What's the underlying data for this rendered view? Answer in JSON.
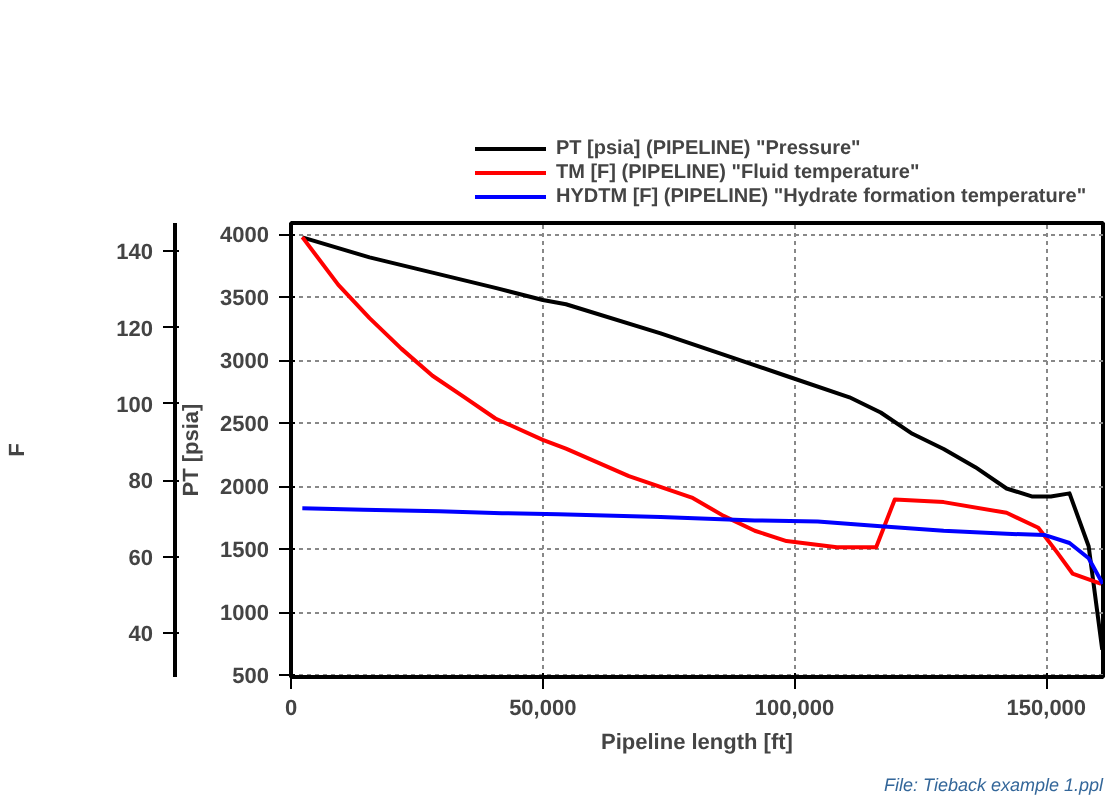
{
  "chart_data": {
    "type": "line",
    "xlabel": "Pipeline length [ft]",
    "ylabel": "PT [psia]",
    "y2label": "F",
    "xlim": [
      0,
      161250
    ],
    "xticks": [
      0,
      {
        "value": 50000,
        "label": "50,000"
      },
      {
        "value": 100000,
        "label": "100,000"
      },
      {
        "value": 150000,
        "label": "150,000"
      }
    ],
    "ylim": [
      485,
      4090
    ],
    "yticks": [
      500,
      1000,
      1500,
      2000,
      2500,
      3000,
      3500,
      4000
    ],
    "y2lim": [
      28.5,
      147.4
    ],
    "y2ticks": [
      40,
      60,
      80,
      100,
      120,
      140
    ],
    "grid": true,
    "legend": "top",
    "line_style": "solid",
    "annotations": [
      "File: Tieback example 1.ppl"
    ],
    "series": [
      {
        "name": "PT [psia] (PIPELINE) \"Pressure\"",
        "color": "#000000",
        "x": [
          2250,
          15600,
          28100,
          40600,
          50000,
          54600,
          73400,
          85900,
          98400,
          110900,
          117100,
          123400,
          129600,
          135900,
          142100,
          147100,
          150900,
          154600,
          158400,
          161100
        ],
        "values": [
          3976,
          3817,
          3696,
          3575,
          3479,
          3445,
          3213,
          3044,
          2875,
          2706,
          2585,
          2416,
          2296,
          2151,
          1982,
          1919,
          1919,
          1943,
          1523,
          702
        ]
      },
      {
        "name": "TM [F] (PIPELINE) \"Fluid temperature\"",
        "color": "#ff0000",
        "axis": "y2",
        "x": [
          2250,
          9400,
          15600,
          21900,
          28100,
          34400,
          40600,
          50000,
          54600,
          67100,
          79600,
          85900,
          92100,
          98400,
          108400,
          116200,
          119900,
          129600,
          142100,
          148400,
          152100,
          155200,
          160900
        ],
        "values": [
          143.7,
          131.2,
          122.5,
          114.5,
          107.4,
          101.8,
          96.2,
          90.6,
          88.3,
          81.1,
          75.5,
          70.7,
          66.8,
          64.1,
          62.5,
          62.5,
          75.0,
          74.3,
          71.5,
          67.6,
          61.2,
          55.6,
          52.9
        ]
      },
      {
        "name": "HYDTM [F] (PIPELINE) \"Hydrate formation temperature\"",
        "color": "#0000ff",
        "axis": "y2",
        "x": [
          2250,
          14400,
          29400,
          41900,
          53100,
          73400,
          92100,
          104600,
          117100,
          129600,
          142100,
          149600,
          154600,
          158400,
          161200
        ],
        "values": [
          72.7,
          72.3,
          71.9,
          71.4,
          71.1,
          70.4,
          69.5,
          69.2,
          68.0,
          66.8,
          66.0,
          65.7,
          63.6,
          59.6,
          52.9
        ]
      }
    ]
  }
}
